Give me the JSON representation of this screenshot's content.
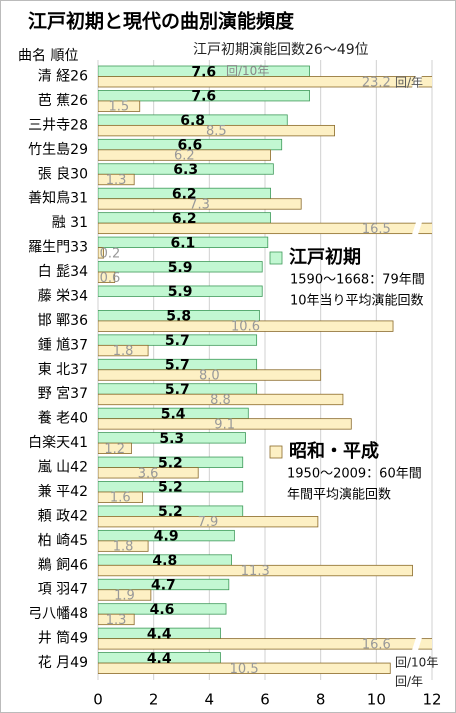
{
  "chart_data": {
    "type": "hbar",
    "title": "江戸初期と現代の曲別演能頻度",
    "subtitle": "江戸初期演能回数26～49位",
    "category_header": "曲名 順位",
    "categories": [
      "清 経26",
      "芭 蕉26",
      "三井寺28",
      "竹生島29",
      "張 良30",
      "善知鳥31",
      "融 31",
      "羅生門33",
      "白 髭34",
      "藤 栄34",
      "邯 鄲36",
      "鍾 馗37",
      "東 北37",
      "野 宮37",
      "養 老40",
      "白楽天41",
      "嵐 山42",
      "兼 平42",
      "頼 政42",
      "柏 崎45",
      "鵜 飼46",
      "項 羽47",
      "弓八幡48",
      "井 筒49",
      "花 月49"
    ],
    "series": [
      {
        "name": "江戸初期",
        "color": "#c2f7d2",
        "edge": "#3f9a5a",
        "description": [
          "1590～1668：79年間",
          "10年当り平均演能回数"
        ],
        "values": [
          7.6,
          7.6,
          6.8,
          6.6,
          6.3,
          6.2,
          6.2,
          6.1,
          5.9,
          5.9,
          5.8,
          5.7,
          5.7,
          5.7,
          5.4,
          5.3,
          5.2,
          5.2,
          5.2,
          4.9,
          4.8,
          4.7,
          4.6,
          4.4,
          4.4
        ]
      },
      {
        "name": "昭和・平成",
        "color": "#fdf0c4",
        "edge": "#8a6a2a",
        "description": [
          "1950～2009：60年間",
          "年間平均演能回数"
        ],
        "values": [
          23.2,
          1.5,
          8.5,
          6.2,
          1.3,
          7.3,
          16.5,
          0.2,
          0.6,
          null,
          10.6,
          1.8,
          8.0,
          8.8,
          9.1,
          1.2,
          3.6,
          1.6,
          7.9,
          1.8,
          11.3,
          1.9,
          1.3,
          16.6,
          10.5
        ],
        "value_labels": [
          "23.2",
          "1.5",
          "8.5",
          "6.2",
          "1.3",
          "7.3",
          "16.5",
          "0.2",
          "0.6",
          null,
          "10.6",
          "1.8",
          "8.0",
          "8.8",
          "9.1",
          "1.2",
          "3.6",
          "1.6",
          "7.9",
          "1.8",
          "11.3",
          "1.9",
          "1.3",
          "16.6",
          "10.5"
        ]
      }
    ],
    "annotations": [
      "回/10年",
      "回/年",
      "回/10年",
      "回/年"
    ],
    "xlim": [
      0,
      12
    ],
    "xticks": [
      0,
      2,
      4,
      6,
      8,
      10,
      12
    ],
    "grid": true
  }
}
